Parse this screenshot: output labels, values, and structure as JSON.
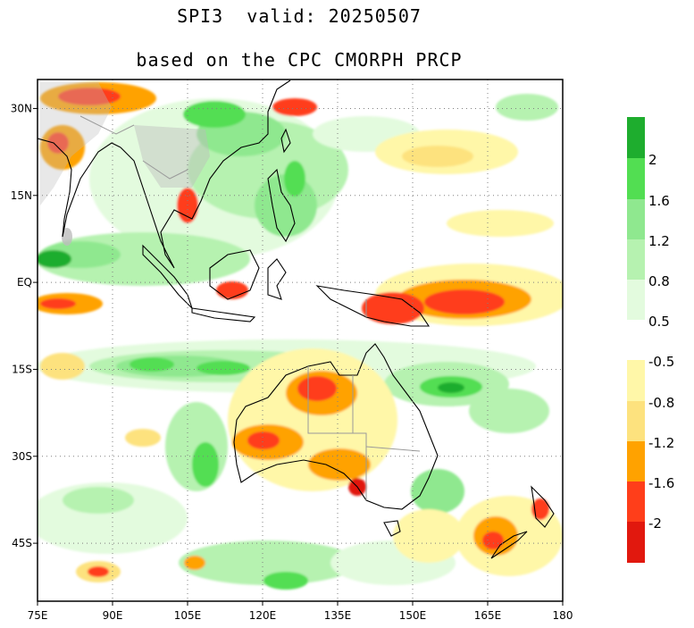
{
  "title": {
    "line1": "SPI3  valid: 20250507",
    "line2": "based on the CPC CMORPH PRCP"
  },
  "map": {
    "lon_range": [
      75,
      180
    ],
    "lat_range": [
      -55,
      35
    ],
    "lon_ticks": [
      "75E",
      "90E",
      "105E",
      "120E",
      "135E",
      "150E",
      "165E",
      "180"
    ],
    "lat_ticks": [
      "30N",
      "15N",
      "EQ",
      "15S",
      "30S",
      "45S"
    ],
    "lon_tick_values": [
      75,
      90,
      105,
      120,
      135,
      150,
      165,
      180
    ],
    "lat_tick_values": [
      30,
      15,
      0,
      -15,
      -30,
      -45
    ]
  },
  "legend": {
    "wet": {
      "colors": [
        "#1ead2e",
        "#52de52",
        "#8fe88f",
        "#b6f2b0",
        "#e3fbde"
      ],
      "labels": [
        "2",
        "1.6",
        "1.2",
        "0.8",
        "0.5"
      ]
    },
    "dry": {
      "colors": [
        "#fff7a8",
        "#fde27e",
        "#ffa200",
        "#ff3e1a",
        "#e1180e"
      ],
      "labels": [
        "-0.5",
        "-0.8",
        "-1.2",
        "-1.6",
        "-2"
      ]
    }
  },
  "colors": {
    "wet_strong": "#1ead2e",
    "wet_moderate": "#52de52",
    "wet_light": "#8fe88f",
    "wet_weak": "#b6f2b0",
    "wet_faint": "#e3fbde",
    "dry_faint": "#fff7a8",
    "dry_weak": "#fde27e",
    "dry_moderate": "#ffa200",
    "dry_strong": "#ff3e1a",
    "dry_extreme": "#e1180e",
    "land_masked": "#bdbdbd",
    "coast": "#000000",
    "border": "#9a9a9a"
  }
}
